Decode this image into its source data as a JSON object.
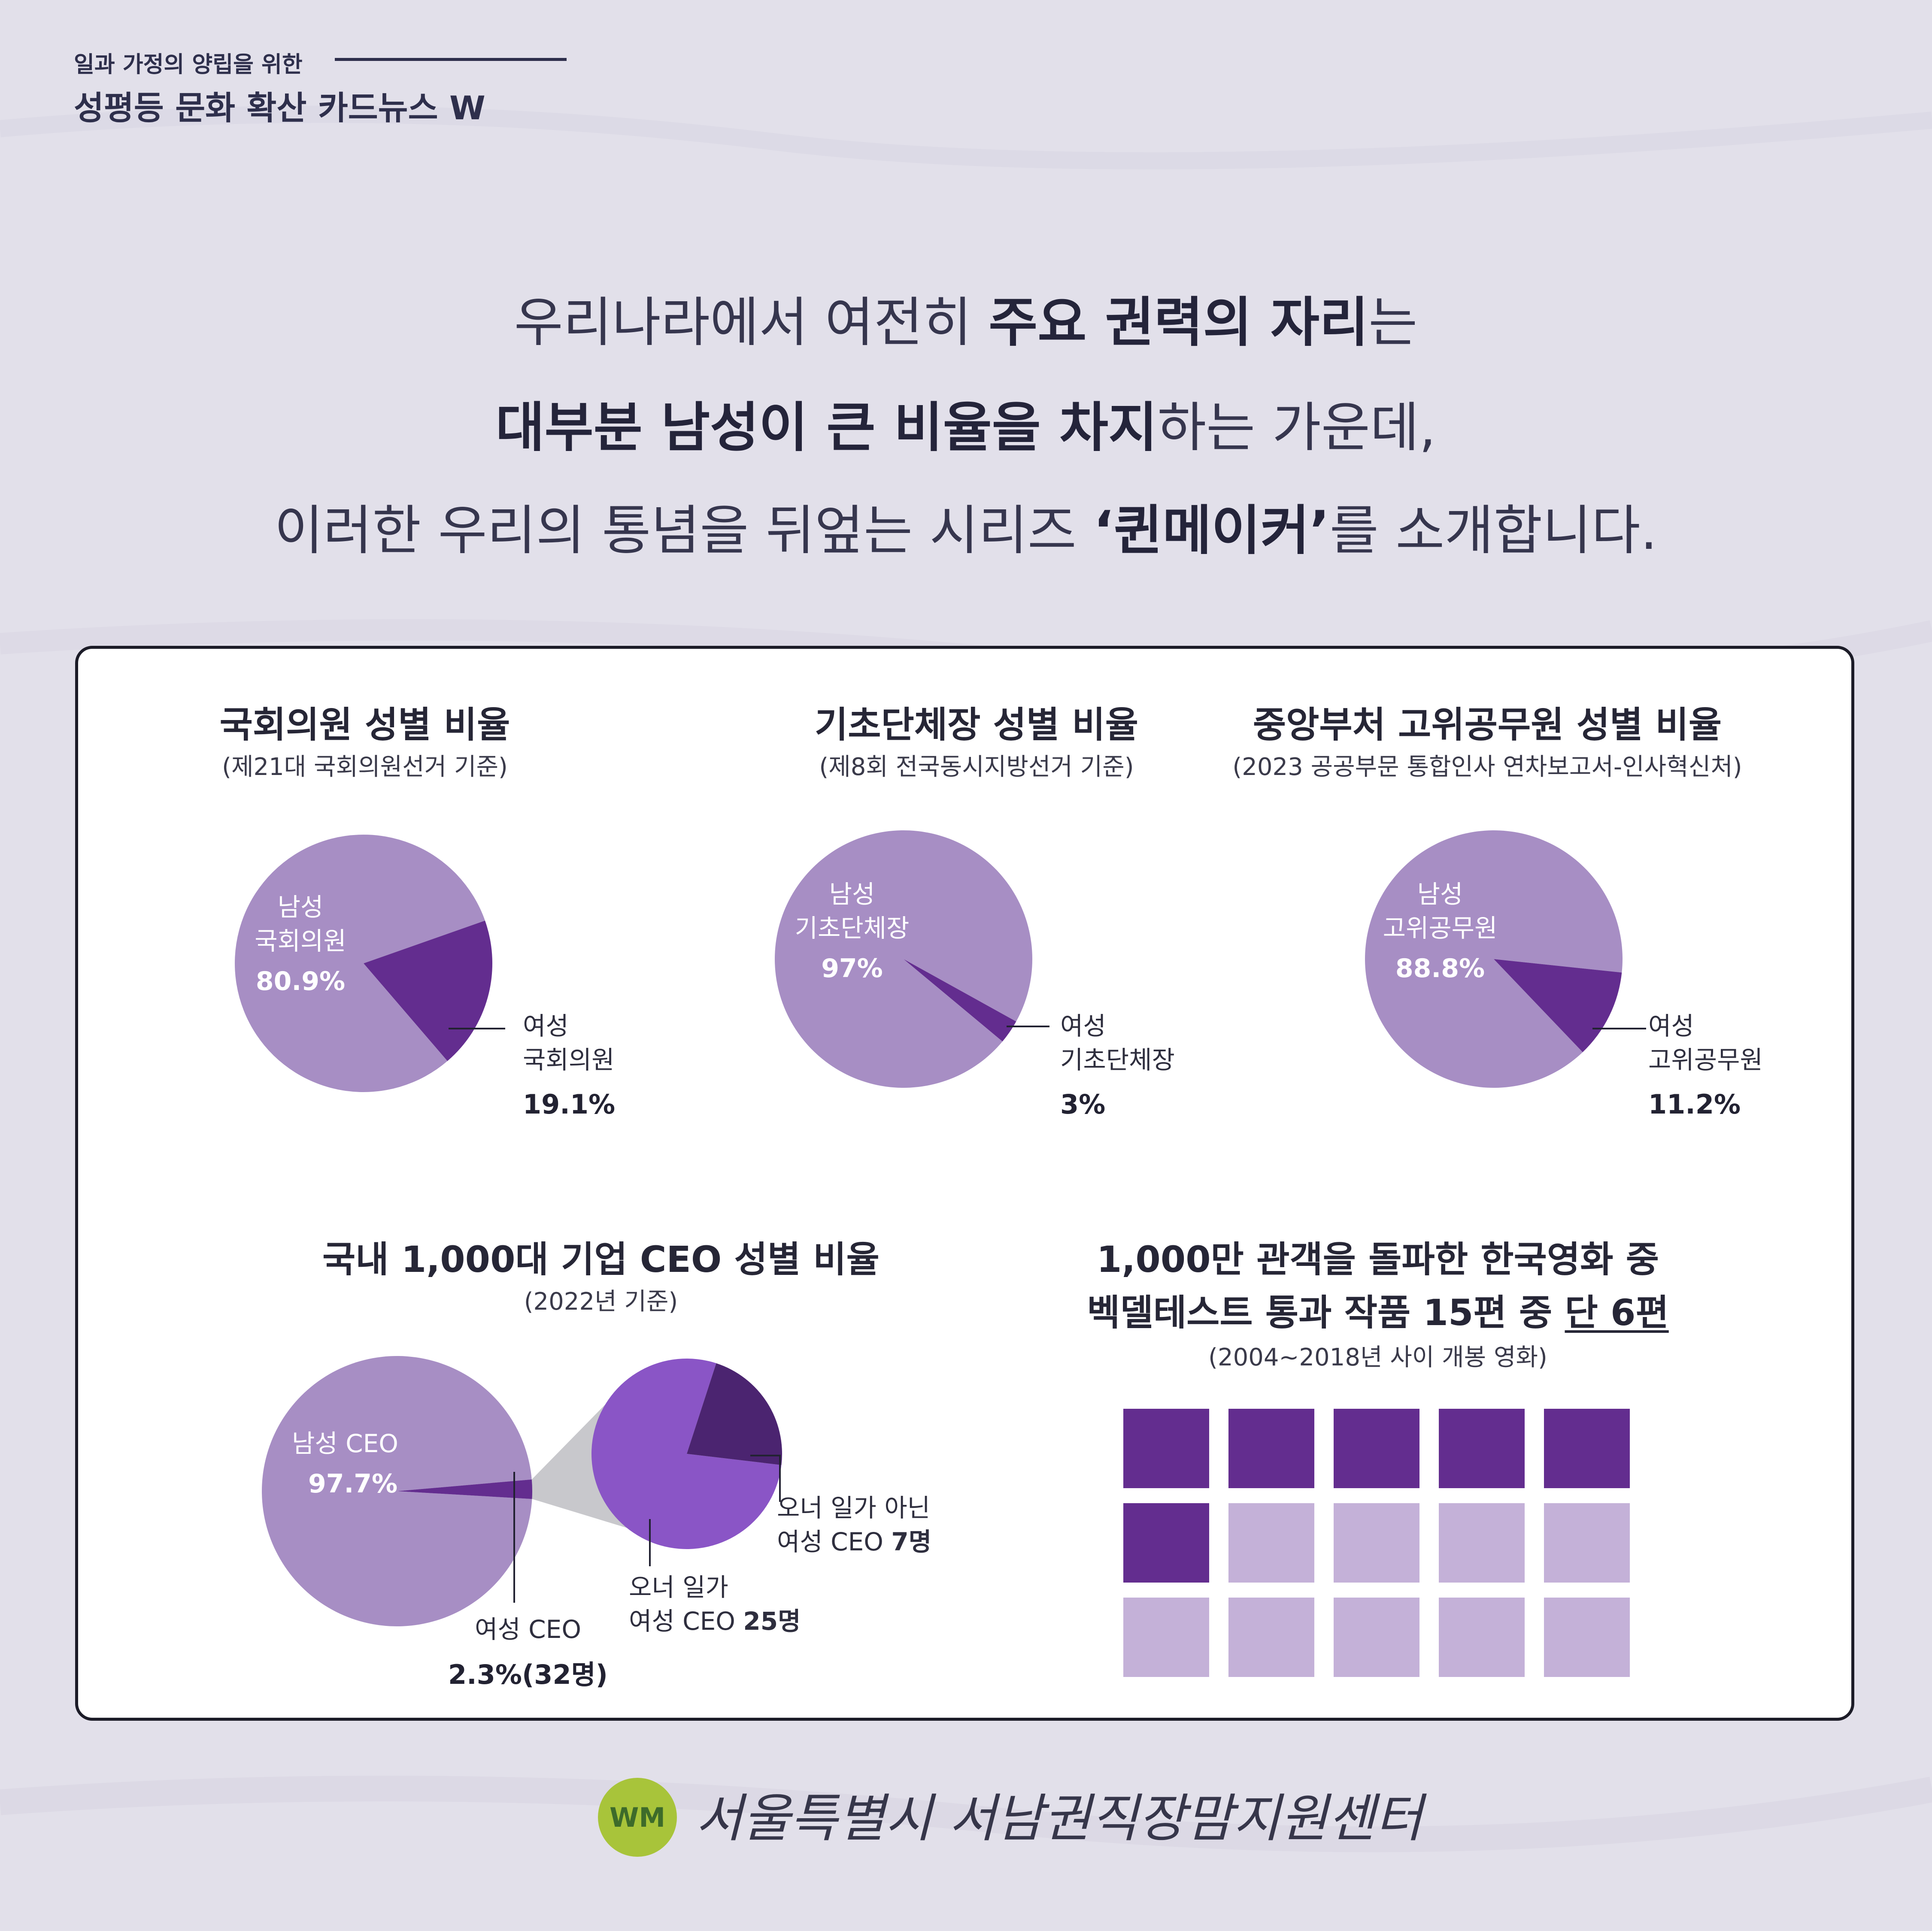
{
  "header": {
    "series_subtitle": "일과 가정의 양립을 위한",
    "series_title": "성평등 문화 확산 카드뉴스 W"
  },
  "intro": {
    "line1_a": "우리나라에서 여전히 ",
    "line1_b": "주요 권력의 자리",
    "line1_c": "는",
    "line2_a": "대부분 남성이 큰 비율을 차지",
    "line2_b": "하는 가운데,",
    "line3_a": "이러한 우리의 통념을 뒤엎는 시리즈 ",
    "line3_b": "‘퀸메이커’",
    "line3_c": "를 소개합니다."
  },
  "colors": {
    "background": "#e2e0ea",
    "male_slice": "#a78ec4",
    "female_slice": "#632d8f",
    "ceo_owner": "#8a55c6",
    "ceo_non_owner": "#4b2470",
    "passed_square": "#632d8f",
    "failed_square": "#c4b1d8",
    "text_dark": "#2e2f4c"
  },
  "charts": {
    "assembly": {
      "title": "국회의원 성별 비율",
      "subtitle": "(제21대 국회의원선거 기준)",
      "male_label_1": "남성",
      "male_label_2": "국회의원",
      "male_pct": "80.9%",
      "female_label_1": "여성",
      "female_label_2": "국회의원",
      "female_pct": "19.1%"
    },
    "local_heads": {
      "title": "기초단체장 성별 비율",
      "subtitle": "(제8회 전국동시지방선거 기준)",
      "male_label_1": "남성",
      "male_label_2": "기초단체장",
      "male_pct": "97%",
      "female_label_1": "여성",
      "female_label_2": "기초단체장",
      "female_pct": "3%"
    },
    "officials": {
      "title": "중앙부처 고위공무원 성별 비율",
      "subtitle": "(2023 공공부문 통합인사 연차보고서-인사혁신처)",
      "male_label_1": "남성",
      "male_label_2": "고위공무원",
      "male_pct": "88.8%",
      "female_label_1": "여성",
      "female_label_2": "고위공무원",
      "female_pct": "11.2%"
    },
    "ceo": {
      "title": "국내 1,000대 기업 CEO 성별 비율",
      "subtitle": "(2022년 기준)",
      "male_label": "남성 CEO",
      "male_pct": "97.7%",
      "female_label": "여성 CEO",
      "female_value": "2.3%(32명)",
      "owner_label_1": "오너 일가",
      "owner_label_2": "여성 CEO ",
      "owner_count": "25명",
      "non_owner_label_1": "오너 일가 아닌",
      "non_owner_label_2": "여성 CEO ",
      "non_owner_count": "7명"
    },
    "bechdel": {
      "title_line1": "1,000만 관객을 돌파한 한국영화 중",
      "title_line2_a": "벡델테스트 통과 작품 15편 중 ",
      "title_line2_b": "단 6편",
      "subtitle": "(2004~2018년 사이 개봉 영화)"
    }
  },
  "chart_data": [
    {
      "type": "pie",
      "title": "국회의원 성별 비율",
      "categories": [
        "남성 국회의원",
        "여성 국회의원"
      ],
      "values": [
        80.9,
        19.1
      ]
    },
    {
      "type": "pie",
      "title": "기초단체장 성별 비율",
      "categories": [
        "남성 기초단체장",
        "여성 기초단체장"
      ],
      "values": [
        97,
        3
      ]
    },
    {
      "type": "pie",
      "title": "중앙부처 고위공무원 성별 비율",
      "categories": [
        "남성 고위공무원",
        "여성 고위공무원"
      ],
      "values": [
        88.8,
        11.2
      ]
    },
    {
      "type": "pie",
      "title": "국내 1,000대 기업 CEO 성별 비율",
      "categories": [
        "남성 CEO",
        "여성 CEO"
      ],
      "values": [
        97.7,
        2.3
      ]
    },
    {
      "type": "pie",
      "title": "",
      "categories": [
        "오너 일가 여성 CEO",
        "오너 일가 아닌 여성 CEO"
      ],
      "values": [
        25,
        7
      ]
    },
    {
      "type": "table",
      "title": "1,000만 관객을 돌파한 한국영화 중 벡델테스트 통과 작품 15편 중 단 6편",
      "total": 15,
      "passed": 6
    }
  ],
  "footer": {
    "org_name": "서울특별시 서남권직장맘지원센터",
    "logo_text": "WM"
  }
}
